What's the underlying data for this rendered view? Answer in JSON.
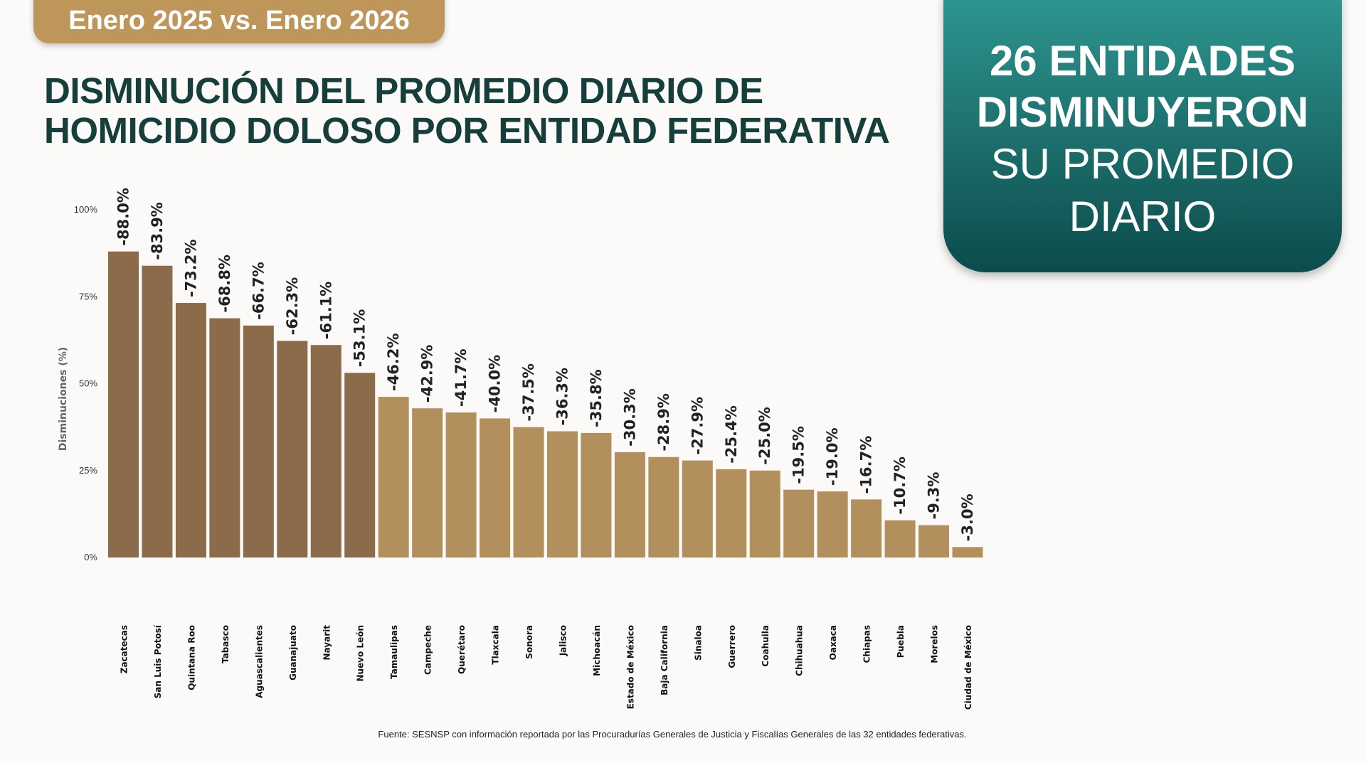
{
  "header": {
    "period": "Enero 2025 vs. Enero 2026",
    "title_line1": "DISMINUCIÓN DEL PROMEDIO DIARIO DE",
    "title_line2": "HOMICIDIO DOLOSO POR ENTIDAD FEDERATIVA"
  },
  "callout": {
    "line1": "26 ENTIDADES",
    "line2": "DISMINUYERON",
    "line3": "SU PROMEDIO",
    "line4": "DIARIO"
  },
  "footer": "Fuente: SESNSP con información reportada por las Procuradurías Generales de Justicia y Fiscalías Generales de las 32 entidades federativas.",
  "chart_data": {
    "type": "bar",
    "ylabel": "Disminuciones (%)",
    "ylim": [
      0,
      100
    ],
    "yticks": [
      "0%",
      "25%",
      "50%",
      "75%",
      "100%"
    ],
    "grid": false,
    "categories": [
      "Zacatecas",
      "San Luis Potosí",
      "Quintana Roo",
      "Tabasco",
      "Aguascalientes",
      "Guanajuato",
      "Nayarit",
      "Nuevo León",
      "Tamaulipas",
      "Campeche",
      "Querétaro",
      "Tlaxcala",
      "Sonora",
      "Jalisco",
      "Michoacán",
      "Estado de México",
      "Baja California",
      "Sinaloa",
      "Guerrero",
      "Coahuila",
      "Chihuahua",
      "Oaxaca",
      "Chiapas",
      "Puebla",
      "Morelos",
      "Ciudad de México"
    ],
    "values": [
      88.0,
      83.9,
      73.2,
      68.8,
      66.7,
      62.3,
      61.1,
      53.1,
      46.2,
      42.9,
      41.7,
      40.0,
      37.5,
      36.3,
      35.8,
      30.3,
      28.9,
      27.9,
      25.4,
      25.0,
      19.5,
      19.0,
      16.7,
      10.7,
      9.3,
      3.0
    ],
    "data_labels": [
      "-88.0%",
      "-83.9%",
      "-73.2%",
      "-68.8%",
      "-66.7%",
      "-62.3%",
      "-61.1%",
      "-53.1%",
      "-46.2%",
      "-42.9%",
      "-41.7%",
      "-40.0%",
      "-37.5%",
      "-36.3%",
      "-35.8%",
      "-30.3%",
      "-28.9%",
      "-27.9%",
      "-25.4%",
      "-25.0%",
      "-19.5%",
      "-19.0%",
      "-16.7%",
      "-10.7%",
      "-9.3%",
      "-3.0%"
    ],
    "colors": {
      "top_group": "#8b6b4a",
      "rest": "#b38f5e"
    },
    "top_group_count": 8
  }
}
